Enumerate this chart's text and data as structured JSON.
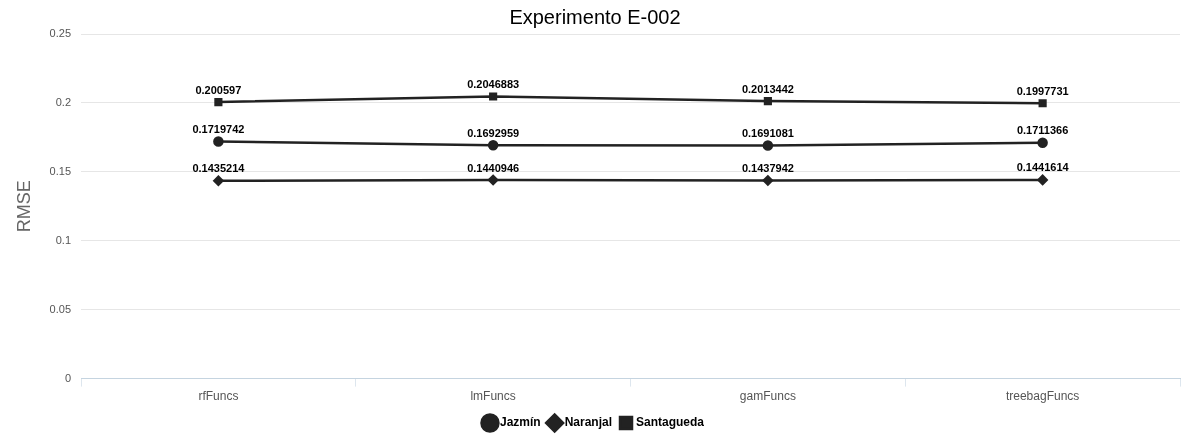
{
  "chart_data": {
    "type": "line",
    "title": "Experimento E-002",
    "ylabel": "RMSE",
    "categories": [
      "rfFuncs",
      "lmFuncs",
      "gamFuncs",
      "treebagFuncs"
    ],
    "series": [
      {
        "name": "Jazmín",
        "color": "#222222",
        "marker": "circle",
        "values": [
          0.1719742,
          0.1692959,
          0.1691081,
          0.1711366
        ]
      },
      {
        "name": "Naranjal",
        "color": "#222222",
        "marker": "diamond",
        "values": [
          0.1435214,
          0.1440946,
          0.1437942,
          0.1441614
        ]
      },
      {
        "name": "Santagueda",
        "color": "#222222",
        "marker": "square",
        "values": [
          0.200597,
          0.2046883,
          0.2013442,
          0.1997731
        ]
      }
    ],
    "ylim": [
      0,
      0.25
    ],
    "yticks": [
      0,
      0.05,
      0.1,
      0.15,
      0.2,
      0.25
    ],
    "grid": "y",
    "legend": "bottom",
    "data_labels": true,
    "line_style": "solid"
  }
}
